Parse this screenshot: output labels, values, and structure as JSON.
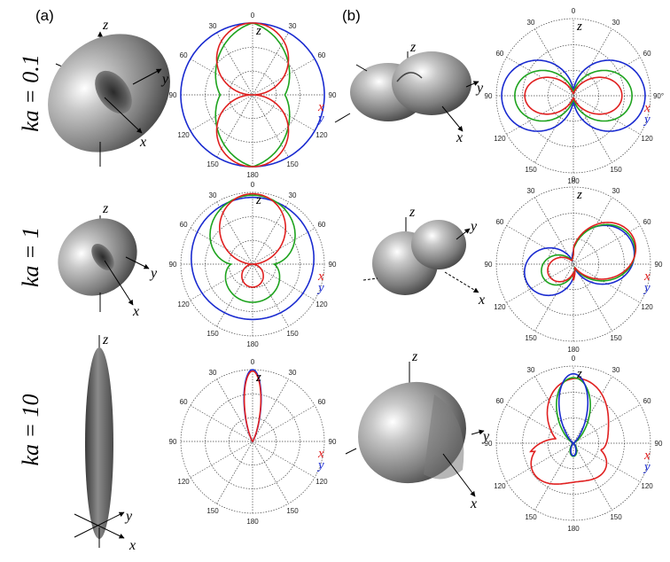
{
  "panels": {
    "a": "(a)",
    "b": "(b)"
  },
  "rows": [
    {
      "label": "ka = 0.1"
    },
    {
      "label": "ka = 1"
    },
    {
      "label": "ka = 10"
    }
  ],
  "axis_labels": {
    "x": "x",
    "y": "y",
    "z": "z"
  },
  "polar_labels": {
    "angles": [
      "0",
      "30",
      "60",
      "90",
      "120",
      "150",
      "180",
      "150",
      "120",
      "90",
      "60",
      "30"
    ],
    "alt_right_90": "90°"
  },
  "colors": {
    "x_curve": "#e02020",
    "y_curve": "#1a2bd0",
    "xy_curve": "#1ea31e"
  }
}
